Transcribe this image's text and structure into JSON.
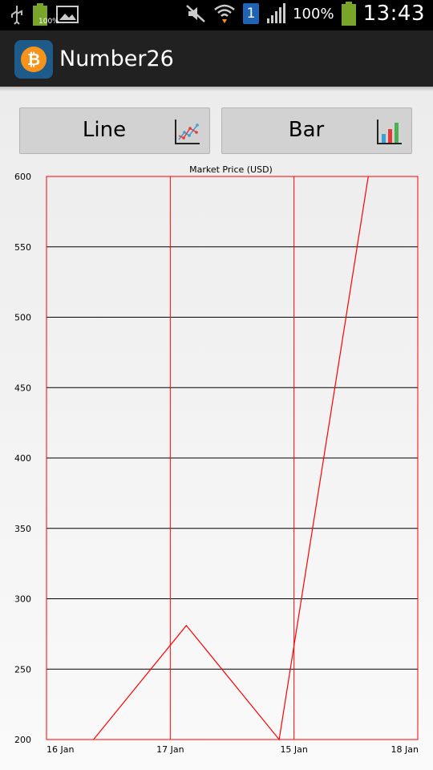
{
  "status_bar": {
    "battery_small_label": "100%",
    "signal_badge": "1",
    "battery_percent": "100%",
    "time": "13:43"
  },
  "app_bar": {
    "title": "Number26",
    "logo_symbol": "₿"
  },
  "buttons": {
    "line_label": "Line",
    "bar_label": "Bar"
  },
  "chart_data": {
    "type": "line",
    "title": "Market Price (USD)",
    "x_tick_labels": [
      "16 Jan",
      "17 Jan",
      "15 Jan",
      "18 Jan"
    ],
    "y_ticks": [
      200,
      250,
      300,
      350,
      400,
      450,
      500,
      550,
      600
    ],
    "ylim": [
      200,
      600
    ],
    "xlim": [
      0,
      3
    ],
    "series": [
      {
        "color": "#ff0000",
        "x": [
          0.38,
          1.13,
          1.88,
          2.6
        ],
        "y": [
          200,
          281,
          200,
          600
        ]
      }
    ],
    "grid": true,
    "xlabel": "",
    "ylabel": ""
  }
}
